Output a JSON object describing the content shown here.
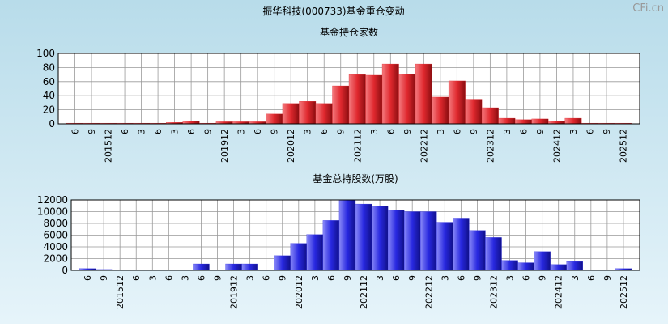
{
  "title": "振华科技(000733)基金重仓变动",
  "watermark": "CFi.cn",
  "chart_data": [
    {
      "type": "bar",
      "title": "基金持仓家数",
      "color": "#e0282e",
      "categories": [
        "6",
        "9",
        "201512",
        "6",
        "3",
        "6",
        "3",
        "6",
        "9",
        "201912",
        "3",
        "6",
        "9",
        "202012",
        "3",
        "6",
        "9",
        "202112",
        "3",
        "6",
        "9",
        "202212",
        "3",
        "6",
        "9",
        "202312",
        "3",
        "6",
        "9",
        "202412",
        "3",
        "6",
        "9",
        "202512"
      ],
      "values": [
        1,
        1,
        1,
        1,
        1,
        1,
        2,
        4,
        1,
        3,
        3,
        3,
        14,
        29,
        32,
        29,
        54,
        70,
        69,
        85,
        71,
        85,
        38,
        61,
        35,
        23,
        8,
        6,
        7,
        4,
        8,
        1,
        1,
        1
      ],
      "ylim": [
        0,
        100
      ],
      "yticks": [
        0,
        20,
        40,
        60,
        80,
        100
      ],
      "grid": true
    },
    {
      "type": "bar",
      "title": "基金总持股数(万股)",
      "color": "#2828e0",
      "categories": [
        "6",
        "9",
        "201512",
        "6",
        "3",
        "6",
        "3",
        "6",
        "9",
        "201912",
        "3",
        "6",
        "9",
        "202012",
        "3",
        "6",
        "9",
        "202112",
        "3",
        "6",
        "9",
        "202212",
        "3",
        "6",
        "9",
        "202312",
        "3",
        "6",
        "9",
        "202412",
        "3",
        "6",
        "9",
        "202512"
      ],
      "values": [
        300,
        150,
        100,
        100,
        100,
        100,
        100,
        1100,
        100,
        1100,
        1100,
        0,
        2500,
        4600,
        6100,
        8500,
        12000,
        11300,
        11000,
        10300,
        10000,
        10000,
        8200,
        8900,
        6800,
        5600,
        1700,
        1300,
        3200,
        1000,
        1500,
        100,
        100,
        300
      ],
      "ylim": [
        0,
        12000
      ],
      "yticks": [
        0,
        2000,
        4000,
        6000,
        8000,
        10000,
        12000
      ],
      "grid": true
    }
  ]
}
